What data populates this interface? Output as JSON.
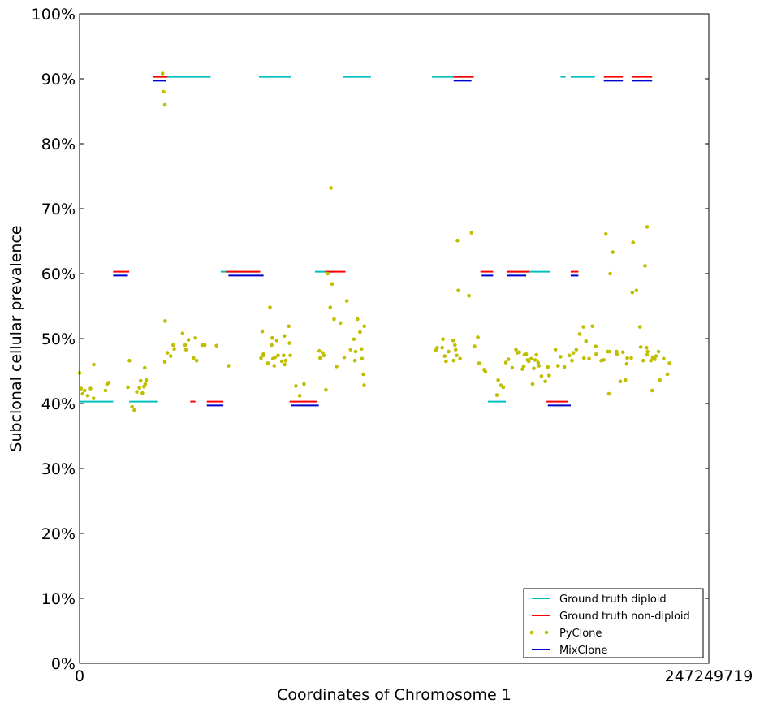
{
  "chart_data": {
    "type": "scatter",
    "xlabel": "Coordinates of Chromosome 1",
    "ylabel": "Subclonal cellular prevalence",
    "xlim": [
      0,
      247249719
    ],
    "ylim": [
      0,
      1
    ],
    "x_tick_labels": [
      "0",
      "247249719"
    ],
    "y_ticks": [
      0,
      0.1,
      0.2,
      0.3,
      0.4,
      0.5,
      0.6,
      0.7,
      0.8,
      0.9,
      1.0
    ],
    "y_tick_labels": [
      "0%",
      "10%",
      "20%",
      "30%",
      "40%",
      "50%",
      "60%",
      "70%",
      "80%",
      "90%",
      "100%"
    ],
    "grid": false,
    "legend_position": "lower-right",
    "series": [
      {
        "name": "Ground truth diploid",
        "type": "segments",
        "color": "#00bfbf",
        "segments": [
          [
            0,
            13200000,
            0.403
          ],
          [
            19500000,
            30500000,
            0.403
          ],
          [
            30000000,
            45000000,
            0.903
          ],
          [
            45000000,
            51500000,
            0.903
          ],
          [
            55500000,
            70000000,
            0.603
          ],
          [
            70500000,
            83000000,
            0.903
          ],
          [
            92500000,
            100500000,
            0.603
          ],
          [
            103500000,
            114500000,
            0.903
          ],
          [
            138500000,
            155000000,
            0.903
          ],
          [
            160500000,
            167500000,
            0.403
          ],
          [
            168000000,
            185000000,
            0.603
          ],
          [
            189000000,
            191000000,
            0.903
          ],
          [
            193000000,
            202500000,
            0.903
          ]
        ]
      },
      {
        "name": "Ground truth non-diploid",
        "type": "segments",
        "color": "#ff0000",
        "segments": [
          [
            13200000,
            19500000,
            0.603
          ],
          [
            29000000,
            34500000,
            0.903
          ],
          [
            43500000,
            45500000,
            0.403
          ],
          [
            50000000,
            56500000,
            0.403
          ],
          [
            57500000,
            71000000,
            0.603
          ],
          [
            82500000,
            93500000,
            0.403
          ],
          [
            96500000,
            104500000,
            0.603
          ],
          [
            147000000,
            154500000,
            0.903
          ],
          [
            157500000,
            162500000,
            0.603
          ],
          [
            168000000,
            176500000,
            0.603
          ],
          [
            183500000,
            192000000,
            0.403
          ],
          [
            193000000,
            196000000,
            0.603
          ],
          [
            206000000,
            213500000,
            0.903
          ],
          [
            217000000,
            225000000,
            0.903
          ]
        ]
      },
      {
        "name": "PyClone",
        "type": "scatter",
        "color": "#bfbf00",
        "points": [
          [
            0,
            0.447
          ],
          [
            600000,
            0.423
          ],
          [
            1200000,
            0.415
          ],
          [
            2000000,
            0.42
          ],
          [
            3200000,
            0.412
          ],
          [
            4300000,
            0.423
          ],
          [
            5500000,
            0.408
          ],
          [
            5600000,
            0.46
          ],
          [
            10200000,
            0.42
          ],
          [
            10800000,
            0.43
          ],
          [
            11500000,
            0.432
          ],
          [
            19000000,
            0.425
          ],
          [
            19600000,
            0.466
          ],
          [
            20600000,
            0.395
          ],
          [
            21500000,
            0.39
          ],
          [
            22500000,
            0.418
          ],
          [
            23500000,
            0.424
          ],
          [
            24000000,
            0.435
          ],
          [
            24700000,
            0.416
          ],
          [
            25300000,
            0.426
          ],
          [
            25600000,
            0.455
          ],
          [
            26200000,
            0.436
          ],
          [
            25800000,
            0.43
          ],
          [
            32600000,
            0.908
          ],
          [
            33000000,
            0.88
          ],
          [
            33500000,
            0.86
          ],
          [
            33600000,
            0.527
          ],
          [
            33500000,
            0.464
          ],
          [
            34500000,
            0.478
          ],
          [
            35800000,
            0.473
          ],
          [
            36800000,
            0.49
          ],
          [
            37200000,
            0.484
          ],
          [
            40500000,
            0.508
          ],
          [
            41500000,
            0.49
          ],
          [
            41800000,
            0.483
          ],
          [
            42800000,
            0.498
          ],
          [
            44800000,
            0.47
          ],
          [
            45500000,
            0.501
          ],
          [
            46000000,
            0.466
          ],
          [
            48200000,
            0.49
          ],
          [
            49200000,
            0.49
          ],
          [
            53800000,
            0.489
          ],
          [
            58500000,
            0.458
          ],
          [
            71300000,
            0.47
          ],
          [
            71800000,
            0.511
          ],
          [
            72200000,
            0.476
          ],
          [
            72300000,
            0.474
          ],
          [
            74000000,
            0.462
          ],
          [
            74800000,
            0.548
          ],
          [
            75500000,
            0.49
          ],
          [
            75700000,
            0.501
          ],
          [
            76000000,
            0.469
          ],
          [
            76500000,
            0.458
          ],
          [
            76800000,
            0.471
          ],
          [
            77500000,
            0.497
          ],
          [
            78000000,
            0.474
          ],
          [
            79500000,
            0.465
          ],
          [
            80200000,
            0.474
          ],
          [
            80500000,
            0.504
          ],
          [
            80600000,
            0.46
          ],
          [
            81000000,
            0.466
          ],
          [
            82200000,
            0.519
          ],
          [
            82500000,
            0.493
          ],
          [
            82800000,
            0.474
          ],
          [
            85000000,
            0.427
          ],
          [
            86500000,
            0.412
          ],
          [
            88200000,
            0.43
          ],
          [
            94200000,
            0.481
          ],
          [
            94500000,
            0.47
          ],
          [
            95500000,
            0.478
          ],
          [
            96000000,
            0.474
          ],
          [
            96800000,
            0.421
          ],
          [
            97500000,
            0.6
          ],
          [
            98800000,
            0.732
          ],
          [
            98500000,
            0.548
          ],
          [
            99200000,
            0.584
          ],
          [
            100000000,
            0.53
          ],
          [
            101000000,
            0.457
          ],
          [
            102500000,
            0.524
          ],
          [
            104000000,
            0.471
          ],
          [
            105000000,
            0.558
          ],
          [
            106500000,
            0.483
          ],
          [
            107800000,
            0.499
          ],
          [
            108200000,
            0.466
          ],
          [
            108500000,
            0.48
          ],
          [
            109200000,
            0.53
          ],
          [
            110200000,
            0.51
          ],
          [
            110800000,
            0.484
          ],
          [
            111000000,
            0.469
          ],
          [
            111500000,
            0.445
          ],
          [
            111800000,
            0.428
          ],
          [
            111900000,
            0.519
          ],
          [
            140000000,
            0.482
          ],
          [
            140500000,
            0.486
          ],
          [
            142500000,
            0.486
          ],
          [
            142800000,
            0.499
          ],
          [
            143500000,
            0.473
          ],
          [
            144000000,
            0.465
          ],
          [
            145000000,
            0.48
          ],
          [
            146800000,
            0.497
          ],
          [
            147000000,
            0.466
          ],
          [
            147500000,
            0.49
          ],
          [
            147800000,
            0.483
          ],
          [
            148200000,
            0.474
          ],
          [
            148500000,
            0.651
          ],
          [
            148800000,
            0.574
          ],
          [
            149500000,
            0.469
          ],
          [
            153000000,
            0.566
          ],
          [
            154000000,
            0.663
          ],
          [
            155200000,
            0.488
          ],
          [
            156500000,
            0.502
          ],
          [
            157000000,
            0.462
          ],
          [
            159000000,
            0.452
          ],
          [
            159500000,
            0.449
          ],
          [
            164000000,
            0.413
          ],
          [
            164500000,
            0.436
          ],
          [
            165500000,
            0.428
          ],
          [
            166500000,
            0.425
          ],
          [
            167500000,
            0.463
          ],
          [
            168500000,
            0.468
          ],
          [
            170000000,
            0.455
          ],
          [
            171500000,
            0.483
          ],
          [
            172000000,
            0.478
          ],
          [
            172800000,
            0.479
          ],
          [
            174000000,
            0.453
          ],
          [
            174500000,
            0.457
          ],
          [
            174800000,
            0.475
          ],
          [
            175500000,
            0.476
          ],
          [
            176000000,
            0.467
          ],
          [
            176500000,
            0.465
          ],
          [
            177500000,
            0.469
          ],
          [
            178500000,
            0.454
          ],
          [
            178000000,
            0.43
          ],
          [
            179000000,
            0.467
          ],
          [
            179500000,
            0.475
          ],
          [
            180200000,
            0.463
          ],
          [
            180500000,
            0.458
          ],
          [
            181500000,
            0.442
          ],
          [
            183000000,
            0.434
          ],
          [
            184000000,
            0.456
          ],
          [
            184500000,
            0.443
          ],
          [
            187000000,
            0.483
          ],
          [
            188000000,
            0.458
          ],
          [
            189000000,
            0.472
          ],
          [
            190500000,
            0.456
          ],
          [
            192500000,
            0.474
          ],
          [
            193500000,
            0.466
          ],
          [
            194000000,
            0.478
          ],
          [
            195200000,
            0.483
          ],
          [
            196500000,
            0.507
          ],
          [
            198000000,
            0.518
          ],
          [
            198200000,
            0.47
          ],
          [
            199000000,
            0.496
          ],
          [
            200200000,
            0.469
          ],
          [
            201500000,
            0.519
          ],
          [
            202800000,
            0.488
          ],
          [
            203000000,
            0.476
          ],
          [
            205000000,
            0.466
          ],
          [
            206000000,
            0.467
          ],
          [
            206800000,
            0.661
          ],
          [
            207500000,
            0.48
          ],
          [
            208000000,
            0.415
          ],
          [
            208200000,
            0.48
          ],
          [
            208500000,
            0.6
          ],
          [
            209500000,
            0.633
          ],
          [
            211000000,
            0.48
          ],
          [
            211200000,
            0.476
          ],
          [
            212500000,
            0.434
          ],
          [
            213500000,
            0.479
          ],
          [
            214500000,
            0.436
          ],
          [
            215000000,
            0.461
          ],
          [
            215200000,
            0.47
          ],
          [
            216800000,
            0.47
          ],
          [
            217200000,
            0.571
          ],
          [
            217500000,
            0.648
          ],
          [
            218800000,
            0.574
          ],
          [
            220200000,
            0.518
          ],
          [
            220500000,
            0.487
          ],
          [
            221500000,
            0.466
          ],
          [
            222200000,
            0.612
          ],
          [
            223000000,
            0.672
          ],
          [
            222800000,
            0.486
          ],
          [
            223200000,
            0.48
          ],
          [
            223000000,
            0.475
          ],
          [
            224500000,
            0.466
          ],
          [
            225000000,
            0.42
          ],
          [
            225200000,
            0.471
          ],
          [
            225500000,
            0.47
          ],
          [
            226000000,
            0.468
          ],
          [
            226500000,
            0.473
          ],
          [
            227500000,
            0.48
          ],
          [
            228000000,
            0.436
          ],
          [
            229500000,
            0.469
          ],
          [
            231000000,
            0.445
          ],
          [
            231800000,
            0.462
          ]
        ]
      },
      {
        "name": "MixClone",
        "type": "segments",
        "color": "#0000cc",
        "segments": [
          [
            13200000,
            19000000,
            0.597
          ],
          [
            29000000,
            34000000,
            0.897
          ],
          [
            50000000,
            56500000,
            0.397
          ],
          [
            58500000,
            72300000,
            0.597
          ],
          [
            83000000,
            94000000,
            0.397
          ],
          [
            147000000,
            154000000,
            0.897
          ],
          [
            158000000,
            162500000,
            0.597
          ],
          [
            168000000,
            175500000,
            0.597
          ],
          [
            184000000,
            193000000,
            0.397
          ],
          [
            193000000,
            196000000,
            0.597
          ],
          [
            206000000,
            213500000,
            0.897
          ],
          [
            217000000,
            225000000,
            0.897
          ]
        ]
      }
    ]
  }
}
